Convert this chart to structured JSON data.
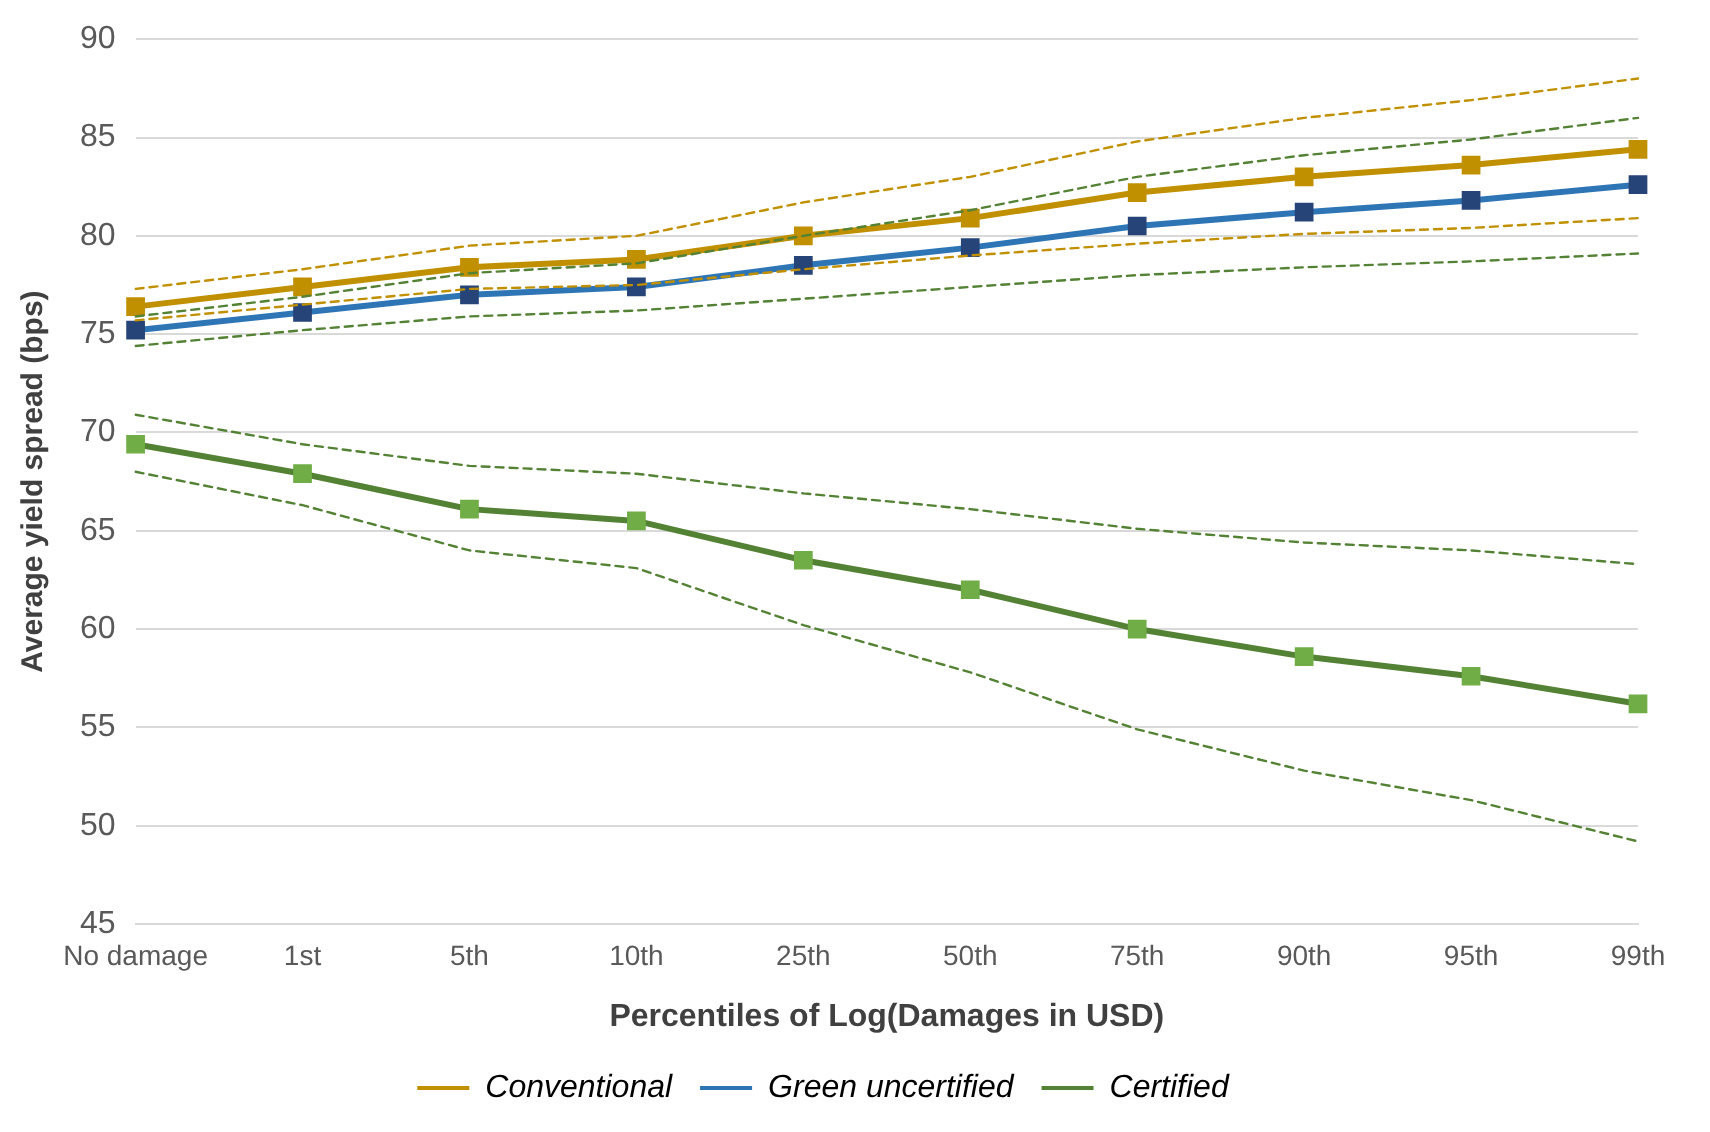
{
  "chart_data": {
    "type": "line",
    "xlabel": "Percentiles of Log(Damages in USD)",
    "ylabel": "Average yield spread (bps)",
    "categories": [
      "No damage",
      "1st",
      "5th",
      "10th",
      "25th",
      "50th",
      "75th",
      "90th",
      "95th",
      "99th"
    ],
    "ylim": [
      45,
      90
    ],
    "yticks": [
      45,
      50,
      55,
      60,
      65,
      70,
      75,
      80,
      85,
      90
    ],
    "grid": "y",
    "legend": "bottom",
    "marker": "square",
    "series": [
      {
        "line_style": "dashed",
        "marker": "none",
        "color": "#c09000",
        "values": [
          77.3,
          78.3,
          79.5,
          80.0,
          81.7,
          83.0,
          84.8,
          86.0,
          86.9,
          88.0
        ]
      },
      {
        "line_style": "dashed",
        "marker": "none",
        "color": "#c09000",
        "values": [
          75.7,
          76.5,
          77.3,
          77.5,
          78.3,
          79.0,
          79.6,
          80.1,
          80.4,
          80.9
        ]
      },
      {
        "line_style": "dashed",
        "marker": "none",
        "color": "#548235",
        "values": [
          75.9,
          76.9,
          78.1,
          78.6,
          80.0,
          81.3,
          83.0,
          84.1,
          84.9,
          86.0
        ]
      },
      {
        "line_style": "dashed",
        "marker": "none",
        "color": "#548235",
        "values": [
          74.4,
          75.2,
          75.9,
          76.2,
          76.8,
          77.4,
          78.0,
          78.4,
          78.7,
          79.1
        ]
      },
      {
        "line_style": "dashed",
        "marker": "none",
        "color": "#548235",
        "values": [
          70.9,
          69.4,
          68.3,
          67.9,
          66.9,
          66.1,
          65.1,
          64.4,
          64.0,
          63.3
        ]
      },
      {
        "line_style": "dashed",
        "marker": "none",
        "color": "#548235",
        "values": [
          68.0,
          66.3,
          64.0,
          63.1,
          60.2,
          57.8,
          54.9,
          52.8,
          51.3,
          49.2
        ]
      },
      {
        "name": "Conventional",
        "color": "#c09000",
        "values": [
          76.4,
          77.4,
          78.4,
          78.8,
          80.0,
          80.9,
          82.2,
          83.0,
          83.6,
          84.4
        ]
      },
      {
        "name": "Green uncertified",
        "color": "#2e75b6",
        "colors": [
          "#264478",
          "#264478",
          "#264478",
          "#264478",
          "#264478",
          "#264478",
          "#264478",
          "#264478",
          "#264478",
          "#264478"
        ],
        "values": [
          75.2,
          76.1,
          77.0,
          77.4,
          78.5,
          79.4,
          80.5,
          81.2,
          81.8,
          82.6
        ]
      },
      {
        "name": "Certified",
        "color": "#548235",
        "colors": [
          "#70ad47",
          "#70ad47",
          "#70ad47",
          "#70ad47",
          "#70ad47",
          "#70ad47",
          "#70ad47",
          "#70ad47",
          "#70ad47",
          "#70ad47"
        ],
        "values": [
          69.4,
          67.9,
          66.1,
          65.5,
          63.5,
          62.0,
          60.0,
          58.6,
          57.6,
          56.2
        ]
      }
    ]
  }
}
